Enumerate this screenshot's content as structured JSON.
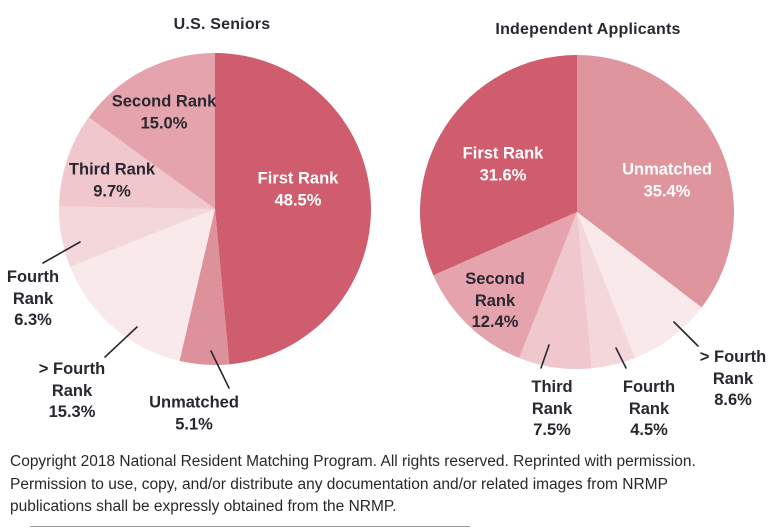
{
  "colors": {
    "background": "#FFFFFF",
    "label_dark": "#2A2731",
    "label_light": "#FFFFFF",
    "callout_line": "#2A2731",
    "footer_text": "#282828"
  },
  "chart_data": [
    {
      "type": "pie",
      "title": "U.S. Seniors",
      "direction": "clockwise",
      "start_angle": "12 o'clock",
      "legend": "none, labels on chart",
      "slices": [
        {
          "label": "First Rank",
          "value": 48.5,
          "display": "48.5%",
          "color": "#D05D6E",
          "lines": [
            "First Rank",
            "48.5%"
          ]
        },
        {
          "label": "Unmatched",
          "value": 5.1,
          "display": "5.1%",
          "color": "#DD929B",
          "lines": [
            "Unmatched",
            "5.1%"
          ]
        },
        {
          "label": "> Fourth Rank",
          "value": 15.3,
          "display": "15.3%",
          "color": "#FAE9EB",
          "lines": [
            "> Fourth",
            "Rank",
            "15.3%"
          ]
        },
        {
          "label": "Fourth Rank",
          "value": 6.3,
          "display": "6.3%",
          "color": "#F4D7DA",
          "lines": [
            "Fourth",
            "Rank",
            "6.3%"
          ]
        },
        {
          "label": "Third Rank",
          "value": 9.7,
          "display": "9.7%",
          "color": "#EFC7CC",
          "lines": [
            "Third Rank",
            "9.7%"
          ]
        },
        {
          "label": "Second Rank",
          "value": 15.0,
          "display": "15.0%",
          "color": "#E5A4AD",
          "lines": [
            "Second Rank",
            "15.0%"
          ]
        }
      ]
    },
    {
      "type": "pie",
      "title": "Independent Applicants",
      "direction": "clockwise",
      "start_angle": "12 o'clock",
      "legend": "none, labels on chart",
      "slices": [
        {
          "label": "Unmatched",
          "value": 35.4,
          "display": "35.4%",
          "color": "#DF959E",
          "lines": [
            "Unmatched",
            "35.4%"
          ]
        },
        {
          "label": "> Fourth Rank",
          "value": 8.6,
          "display": "8.6%",
          "color": "#FAE9EB",
          "lines": [
            "> Fourth",
            "Rank",
            "8.6%"
          ]
        },
        {
          "label": "Fourth Rank",
          "value": 4.5,
          "display": "4.5%",
          "color": "#F4D7DA",
          "lines": [
            "Fourth",
            "Rank",
            "4.5%"
          ]
        },
        {
          "label": "Third Rank",
          "value": 7.5,
          "display": "7.5%",
          "color": "#EFC7CC",
          "lines": [
            "Third",
            "Rank",
            "7.5%"
          ]
        },
        {
          "label": "Second Rank",
          "value": 12.4,
          "display": "12.4%",
          "color": "#E5A4AD",
          "lines": [
            "Second",
            "Rank",
            "12.4%"
          ]
        },
        {
          "label": "First Rank",
          "value": 31.6,
          "display": "31.6%",
          "color": "#D05D6E",
          "lines": [
            "First Rank",
            "31.6%"
          ]
        }
      ]
    }
  ],
  "footer": {
    "lines": [
      "Copyright 2018 National Resident Matching Program. All rights reserved. Reprinted with permission.",
      "Permission to use, copy, and/or distribute any documentation and/or related images from NRMP",
      "publications shall be expressly obtained from the NRMP."
    ]
  }
}
